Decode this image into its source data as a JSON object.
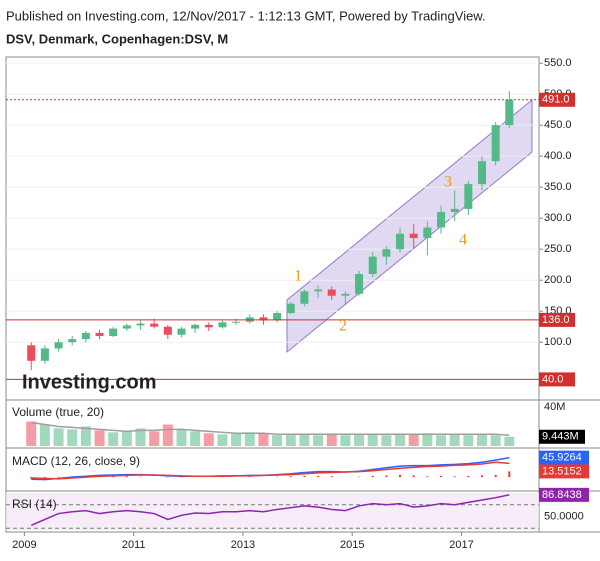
{
  "chart_data": {
    "type": "candlestick",
    "subtitle": "Published on Investing.com, 12/Nov/2017 - 1:12:13 GMT, Powered by TradingView.",
    "title": "DSV, Denmark, Copenhagen:DSV, M",
    "logo": "Investing.com",
    "x": [
      2009.125,
      2009.375,
      2009.625,
      2009.875,
      2010.125,
      2010.375,
      2010.625,
      2010.875,
      2011.125,
      2011.375,
      2011.625,
      2011.875,
      2012.125,
      2012.375,
      2012.625,
      2012.875,
      2013.125,
      2013.375,
      2013.625,
      2013.875,
      2014.125,
      2014.375,
      2014.625,
      2014.875,
      2015.125,
      2015.375,
      2015.625,
      2015.875,
      2016.125,
      2016.375,
      2016.625,
      2016.875,
      2017.125,
      2017.375,
      2017.625,
      2017.875
    ],
    "xlim": [
      2008.7,
      2018.4
    ],
    "xticks": [
      2009,
      2011,
      2013,
      2015,
      2017
    ],
    "ylim": [
      10,
      560
    ],
    "yticks": [
      {
        "value": 550,
        "label": "550.0"
      },
      {
        "value": 500,
        "label": "500.0"
      },
      {
        "value": 450,
        "label": "450.0"
      },
      {
        "value": 400,
        "label": "400.0"
      },
      {
        "value": 350,
        "label": "350.0"
      },
      {
        "value": 300,
        "label": "300.0"
      },
      {
        "value": 250,
        "label": "250.0"
      },
      {
        "value": 200,
        "label": "200.0"
      },
      {
        "value": 150,
        "label": "150.0"
      },
      {
        "value": 100,
        "label": "100.0"
      }
    ],
    "open": [
      95,
      70,
      90,
      100,
      105,
      115,
      110,
      122,
      127,
      130,
      125,
      112,
      122,
      128,
      124,
      132,
      133,
      140,
      135,
      147,
      162,
      182,
      185,
      175,
      178,
      210,
      238,
      250,
      275,
      268,
      285,
      310,
      315,
      355,
      392,
      450
    ],
    "high": [
      100,
      95,
      105,
      110,
      118,
      120,
      125,
      130,
      135,
      138,
      128,
      125,
      130,
      132,
      135,
      138,
      145,
      145,
      150,
      165,
      185,
      192,
      190,
      182,
      215,
      245,
      255,
      285,
      290,
      295,
      320,
      345,
      360,
      400,
      455,
      505
    ],
    "low": [
      55,
      65,
      85,
      95,
      100,
      105,
      108,
      118,
      120,
      122,
      105,
      108,
      115,
      118,
      122,
      128,
      130,
      128,
      132,
      145,
      158,
      172,
      168,
      160,
      175,
      205,
      225,
      245,
      250,
      240,
      275,
      295,
      305,
      345,
      385,
      445
    ],
    "close": [
      70,
      90,
      100,
      105,
      115,
      110,
      122,
      127,
      130,
      125,
      112,
      122,
      128,
      124,
      132,
      133,
      140,
      135,
      147,
      162,
      182,
      185,
      175,
      178,
      210,
      238,
      250,
      275,
      268,
      285,
      310,
      315,
      355,
      392,
      450,
      491
    ],
    "up_color": "#53b987",
    "down_color": "#eb4d5c",
    "price_lines": [
      {
        "value": 491,
        "label": "491.0",
        "style": "dotted",
        "color": "#d32f2f"
      },
      {
        "value": 136,
        "label": "136.0",
        "style": "solid",
        "color": "#d32f2f"
      },
      {
        "value": 40,
        "label": "40.0",
        "style": "solid",
        "color": "#d32f2f"
      }
    ],
    "annotations": [
      "1",
      "2",
      "3",
      "4"
    ],
    "volume": {
      "title": "Volume (true, 20)",
      "ylim": [
        0,
        45
      ],
      "yticks": [
        {
          "value": 40,
          "label": "40M"
        }
      ],
      "values": [
        25,
        22,
        18,
        17,
        20,
        16,
        14,
        15,
        18,
        15,
        22,
        17,
        15,
        13,
        12,
        13,
        14,
        13,
        11,
        12,
        12,
        11,
        12,
        11,
        12,
        12,
        11,
        12,
        12,
        13,
        11,
        12,
        11,
        12,
        11,
        9.443
      ],
      "value_labels": [
        null,
        null,
        null,
        null,
        null,
        null,
        null,
        null,
        null,
        null,
        null,
        null,
        null,
        null,
        null,
        null,
        null,
        null,
        null,
        null,
        null,
        null,
        null,
        null,
        null,
        null,
        null,
        null,
        null,
        null,
        null,
        null,
        null,
        null,
        null,
        "9.443M"
      ],
      "ma": [
        24,
        22,
        20,
        19,
        18,
        17,
        16,
        15,
        16,
        16,
        17,
        17,
        16,
        15,
        14,
        13,
        13,
        13,
        12,
        12,
        12,
        12,
        12,
        12,
        12,
        12,
        12,
        12,
        12,
        12,
        12,
        12,
        12,
        12,
        12,
        11
      ],
      "ma_color": "#9e9e9e"
    },
    "macd": {
      "title": "MACD (12, 26, close, 9)",
      "ylim": [
        -28,
        64
      ],
      "series": [
        {
          "name": "MACD",
          "color": "#2962ff",
          "values": [
            -5,
            -6,
            -3,
            0,
            2,
            4,
            5,
            6,
            6,
            5,
            3,
            2,
            2,
            2,
            3,
            3,
            4,
            4,
            6,
            8,
            11,
            13,
            13,
            12,
            14,
            18,
            22,
            26,
            27,
            27,
            29,
            30,
            32,
            35,
            40,
            45.9264
          ]
        },
        {
          "name": "Signal",
          "color": "#e53935",
          "values": [
            -2,
            -3,
            -4,
            -2,
            0,
            2,
            3,
            4,
            5,
            5,
            4,
            3,
            2,
            2,
            2,
            3,
            3,
            4,
            5,
            6,
            8,
            10,
            11,
            12,
            13,
            15,
            18,
            21,
            23,
            25,
            26,
            28,
            29,
            31,
            35,
            32.4112
          ]
        }
      ],
      "histogram": {
        "color": "#e53935",
        "values": [
          -3,
          -3,
          1,
          2,
          2,
          2,
          2,
          2,
          1,
          0,
          -1,
          -1,
          0,
          0,
          1,
          0,
          1,
          0,
          1,
          2,
          3,
          3,
          2,
          0,
          1,
          3,
          4,
          5,
          4,
          2,
          3,
          2,
          3,
          4,
          5,
          13.5152
        ]
      }
    },
    "rsi": {
      "title": "RSI (14)",
      "ylim": [
        27,
        90
      ],
      "yticks": [
        {
          "value": 50,
          "label": "50.0000"
        }
      ],
      "bands": [
        30,
        70
      ],
      "color": "#8e24aa",
      "values": [
        35,
        45,
        55,
        58,
        60,
        55,
        58,
        60,
        58,
        55,
        45,
        52,
        56,
        55,
        58,
        58,
        60,
        58,
        62,
        65,
        68,
        66,
        62,
        60,
        68,
        72,
        70,
        72,
        66,
        68,
        72,
        70,
        74,
        78,
        82,
        86.8438
      ]
    }
  }
}
